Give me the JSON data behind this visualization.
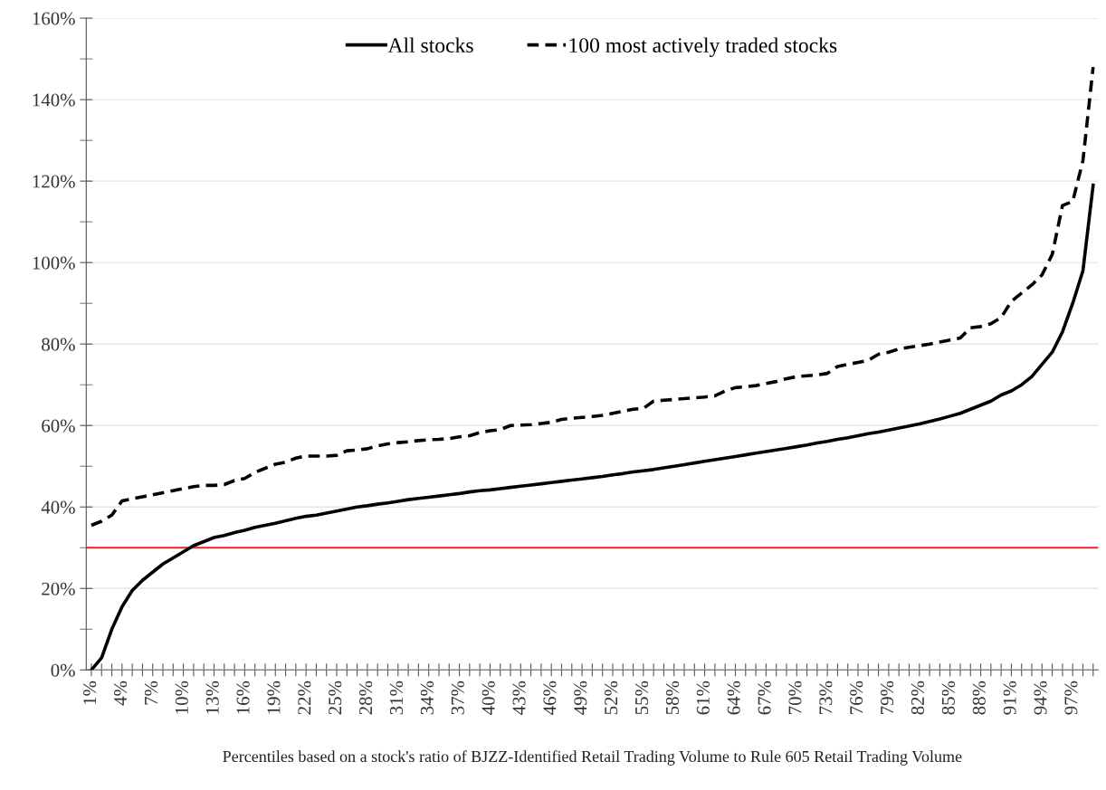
{
  "chart_data": {
    "type": "line",
    "xlabel": "Percentiles based on a stock's ratio of BJZZ-Identified Retail Trading Volume to Rule 605 Retail Trading Volume",
    "categories": [
      "1%",
      null,
      null,
      "4%",
      null,
      null,
      "7%",
      null,
      null,
      "10%",
      null,
      null,
      "13%",
      null,
      null,
      "16%",
      null,
      null,
      "19%",
      null,
      null,
      "22%",
      null,
      null,
      "25%",
      null,
      null,
      "28%",
      null,
      null,
      "31%",
      null,
      null,
      "34%",
      null,
      null,
      "37%",
      null,
      null,
      "40%",
      null,
      null,
      "43%",
      null,
      null,
      "46%",
      null,
      null,
      "49%",
      null,
      null,
      "52%",
      null,
      null,
      "55%",
      null,
      null,
      "58%",
      null,
      null,
      "61%",
      null,
      null,
      "64%",
      null,
      null,
      "67%",
      null,
      null,
      "70%",
      null,
      null,
      "73%",
      null,
      null,
      "76%",
      null,
      null,
      "79%",
      null,
      null,
      "82%",
      null,
      null,
      "85%",
      null,
      null,
      "88%",
      null,
      null,
      "91%",
      null,
      null,
      "94%",
      null,
      null,
      "97%",
      null,
      null
    ],
    "series": [
      {
        "name": "All stocks",
        "color": "#000000",
        "line_style": "solid",
        "values": [
          0,
          3,
          10,
          15.5,
          19.5,
          22,
          24,
          26,
          27.5,
          29,
          30.5,
          31.5,
          32.5,
          33,
          33.7,
          34.3,
          35,
          35.5,
          36,
          36.6,
          37.2,
          37.7,
          38,
          38.5,
          39,
          39.5,
          40,
          40.3,
          40.7,
          41,
          41.4,
          41.8,
          42.1,
          42.4,
          42.7,
          43,
          43.3,
          43.7,
          44,
          44.2,
          44.5,
          44.8,
          45.1,
          45.4,
          45.7,
          46,
          46.3,
          46.6,
          46.9,
          47.2,
          47.5,
          47.9,
          48.2,
          48.6,
          48.9,
          49.2,
          49.6,
          50,
          50.4,
          50.8,
          51.2,
          51.6,
          52,
          52.4,
          52.8,
          53.2,
          53.6,
          54,
          54.4,
          54.8,
          55.2,
          55.7,
          56.1,
          56.6,
          57,
          57.5,
          58,
          58.4,
          58.9,
          59.4,
          59.9,
          60.4,
          61,
          61.6,
          62.3,
          63,
          64,
          65,
          66,
          67.5,
          68.5,
          70,
          72,
          75,
          78,
          83,
          90,
          98,
          119
        ]
      },
      {
        "name": "100 most actively traded stocks",
        "color": "#000000",
        "line_style": "dashed",
        "values": [
          35.5,
          36.5,
          38,
          41.5,
          42,
          42.5,
          43,
          43.5,
          44,
          44.5,
          45,
          45.3,
          45.3,
          45.5,
          46.5,
          47,
          48.5,
          49.5,
          50.5,
          51,
          52,
          52.5,
          52.5,
          52.5,
          52.7,
          53.8,
          54,
          54.3,
          55,
          55.5,
          55.8,
          56,
          56.3,
          56.5,
          56.6,
          56.8,
          57.2,
          57.5,
          58.3,
          58.7,
          59,
          60,
          60.1,
          60.2,
          60.5,
          60.8,
          61.5,
          61.8,
          62,
          62.2,
          62.5,
          63,
          63.5,
          64,
          64.2,
          66,
          66.2,
          66.4,
          66.6,
          66.8,
          67,
          67.3,
          68.5,
          69.3,
          69.5,
          69.8,
          70.3,
          70.8,
          71.5,
          72,
          72.2,
          72.4,
          72.8,
          74.5,
          75,
          75.5,
          76,
          77.5,
          78,
          78.8,
          79.2,
          79.6,
          80,
          80.5,
          81,
          81.5,
          84,
          84.3,
          85,
          86.5,
          90.5,
          92.5,
          94.5,
          97,
          102,
          114,
          115,
          125,
          148
        ]
      }
    ],
    "ylim": [
      0,
      160
    ],
    "yticks": [
      {
        "value": 0,
        "label": "0%"
      },
      {
        "value": 10,
        "label": null
      },
      {
        "value": 20,
        "label": "20%"
      },
      {
        "value": 30,
        "label": null
      },
      {
        "value": 40,
        "label": "40%"
      },
      {
        "value": 50,
        "label": null
      },
      {
        "value": 60,
        "label": "60%"
      },
      {
        "value": 70,
        "label": null
      },
      {
        "value": 80,
        "label": "80%"
      },
      {
        "value": 90,
        "label": null
      },
      {
        "value": 100,
        "label": "100%"
      },
      {
        "value": 110,
        "label": null
      },
      {
        "value": 120,
        "label": "120%"
      },
      {
        "value": 130,
        "label": null
      },
      {
        "value": 140,
        "label": "140%"
      },
      {
        "value": 150,
        "label": null
      },
      {
        "value": 160,
        "label": "160%"
      }
    ],
    "ref_lines": [
      {
        "axis": "y",
        "value": 30,
        "color": "#e8262a",
        "line_style": "solid"
      }
    ],
    "grid": "y",
    "legend": "top",
    "marker": "none"
  }
}
